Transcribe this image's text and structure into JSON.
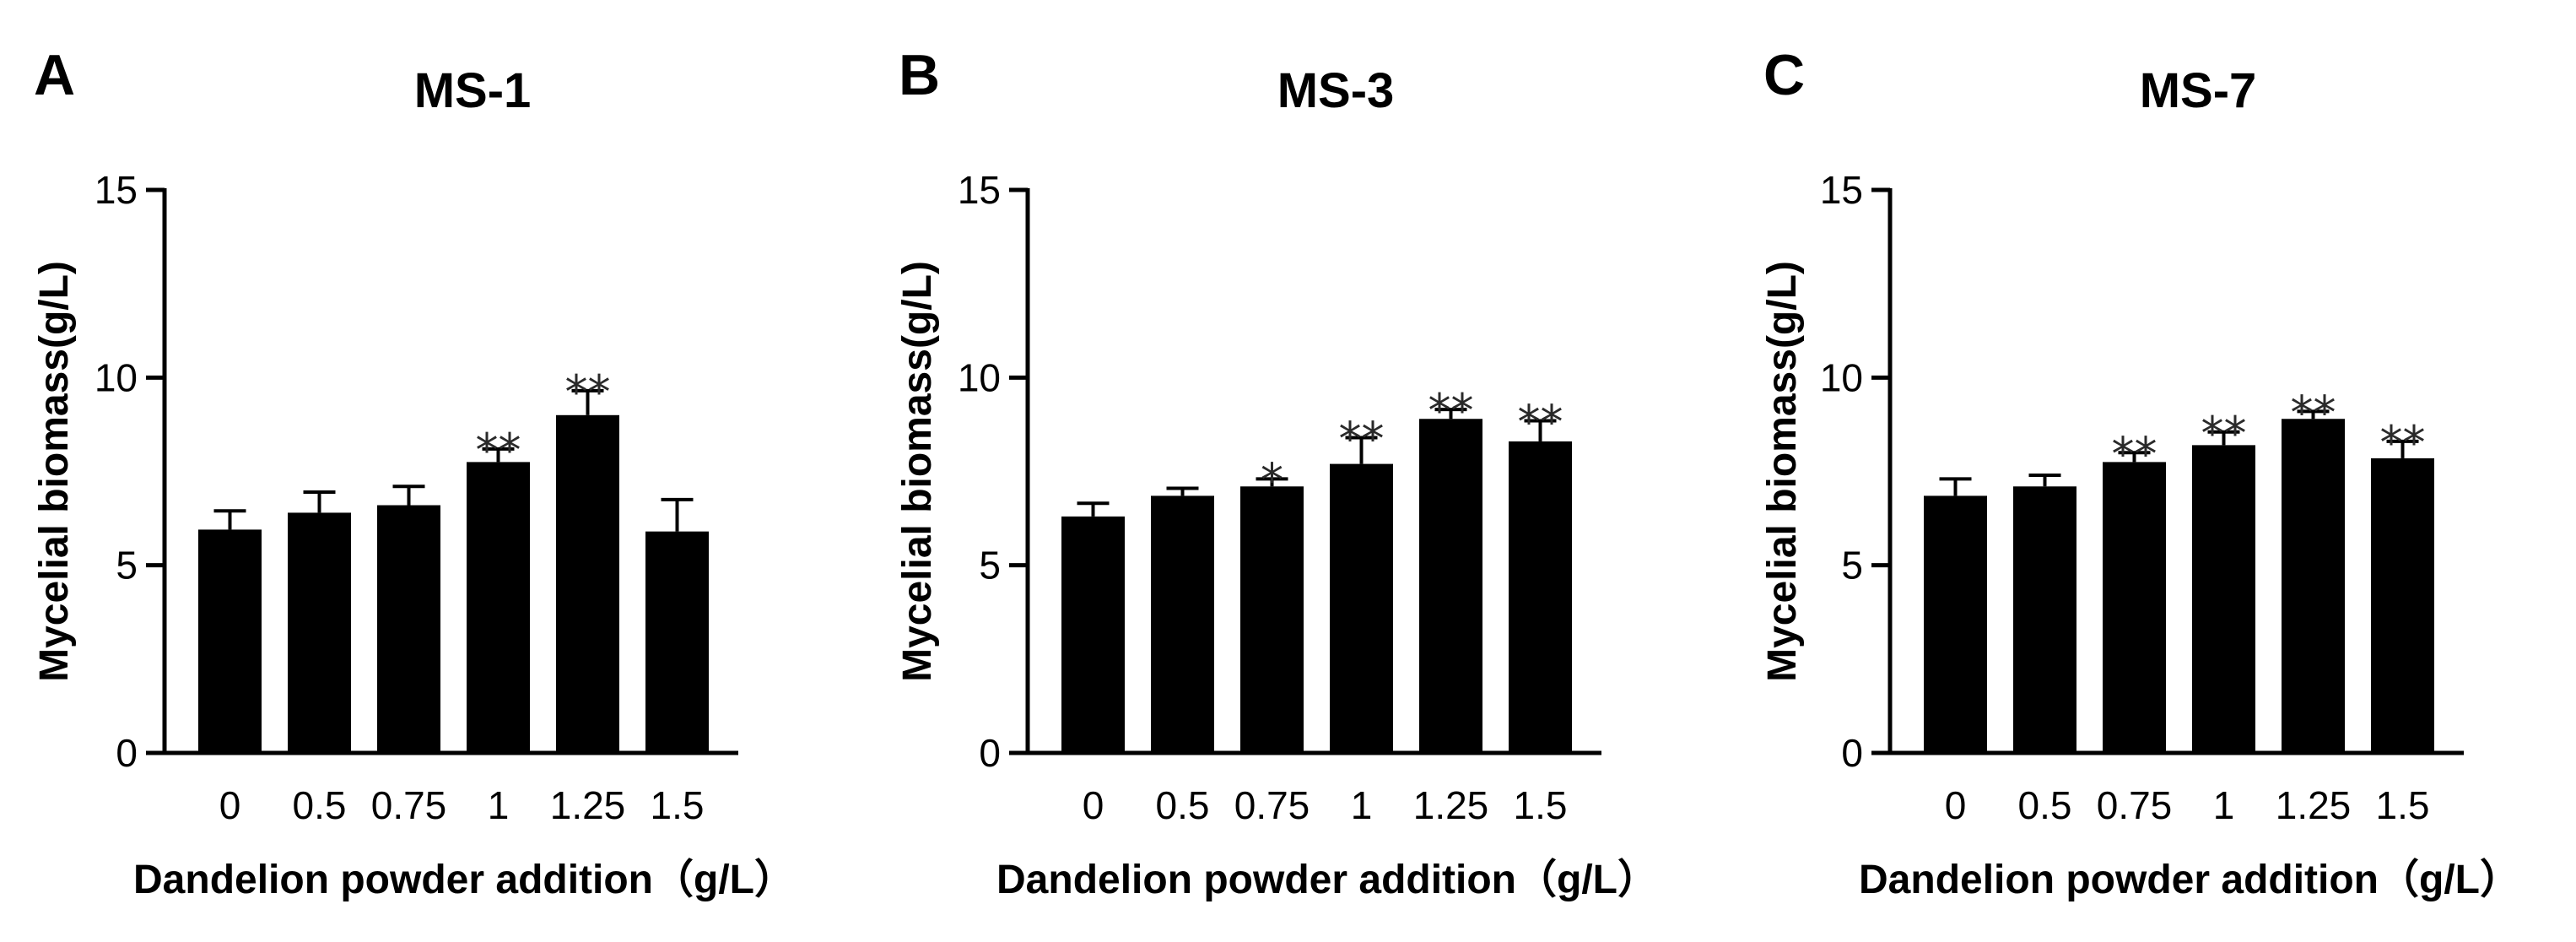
{
  "chart_data": [
    {
      "panel": "A",
      "type": "bar",
      "title": "MS-1",
      "xlabel": "Dandelion powder addition（g/L）",
      "ylabel": "Mycelial biomass(g/L)",
      "ylim": [
        0,
        15
      ],
      "yticks": [
        "0",
        "5",
        "10",
        "15"
      ],
      "categories": [
        "0",
        "0.5",
        "0.75",
        "1",
        "1.25",
        "1.5"
      ],
      "values": [
        5.95,
        6.4,
        6.6,
        7.75,
        9.0,
        5.9
      ],
      "errors": [
        0.5,
        0.55,
        0.5,
        0.35,
        0.65,
        0.85
      ],
      "significance": [
        "",
        "",
        "",
        "**",
        "**",
        ""
      ],
      "color": "#000000"
    },
    {
      "panel": "B",
      "type": "bar",
      "title": "MS-3",
      "xlabel": "Dandelion powder addition（g/L）",
      "ylabel": "Mycelial biomass(g/L)",
      "ylim": [
        0,
        15
      ],
      "yticks": [
        "0",
        "5",
        "10",
        "15"
      ],
      "categories": [
        "0",
        "0.5",
        "0.75",
        "1",
        "1.25",
        "1.5"
      ],
      "values": [
        6.3,
        6.85,
        7.1,
        7.7,
        8.9,
        8.3
      ],
      "errors": [
        0.35,
        0.2,
        0.2,
        0.7,
        0.25,
        0.55
      ],
      "significance": [
        "",
        "",
        "*",
        "**",
        "**",
        "**"
      ],
      "color": "#000000"
    },
    {
      "panel": "C",
      "type": "bar",
      "title": "MS-7",
      "xlabel": "Dandelion powder addition（g/L）",
      "ylabel": "Mycelial biomass(g/L)",
      "ylim": [
        0,
        15
      ],
      "yticks": [
        "0",
        "5",
        "10",
        "15"
      ],
      "categories": [
        "0",
        "0.5",
        "0.75",
        "1",
        "1.25",
        "1.5"
      ],
      "values": [
        6.85,
        7.1,
        7.75,
        8.2,
        8.9,
        7.85
      ],
      "errors": [
        0.45,
        0.3,
        0.25,
        0.35,
        0.2,
        0.45
      ],
      "significance": [
        "",
        "",
        "**",
        "**",
        "**",
        "**"
      ],
      "color": "#000000"
    }
  ]
}
